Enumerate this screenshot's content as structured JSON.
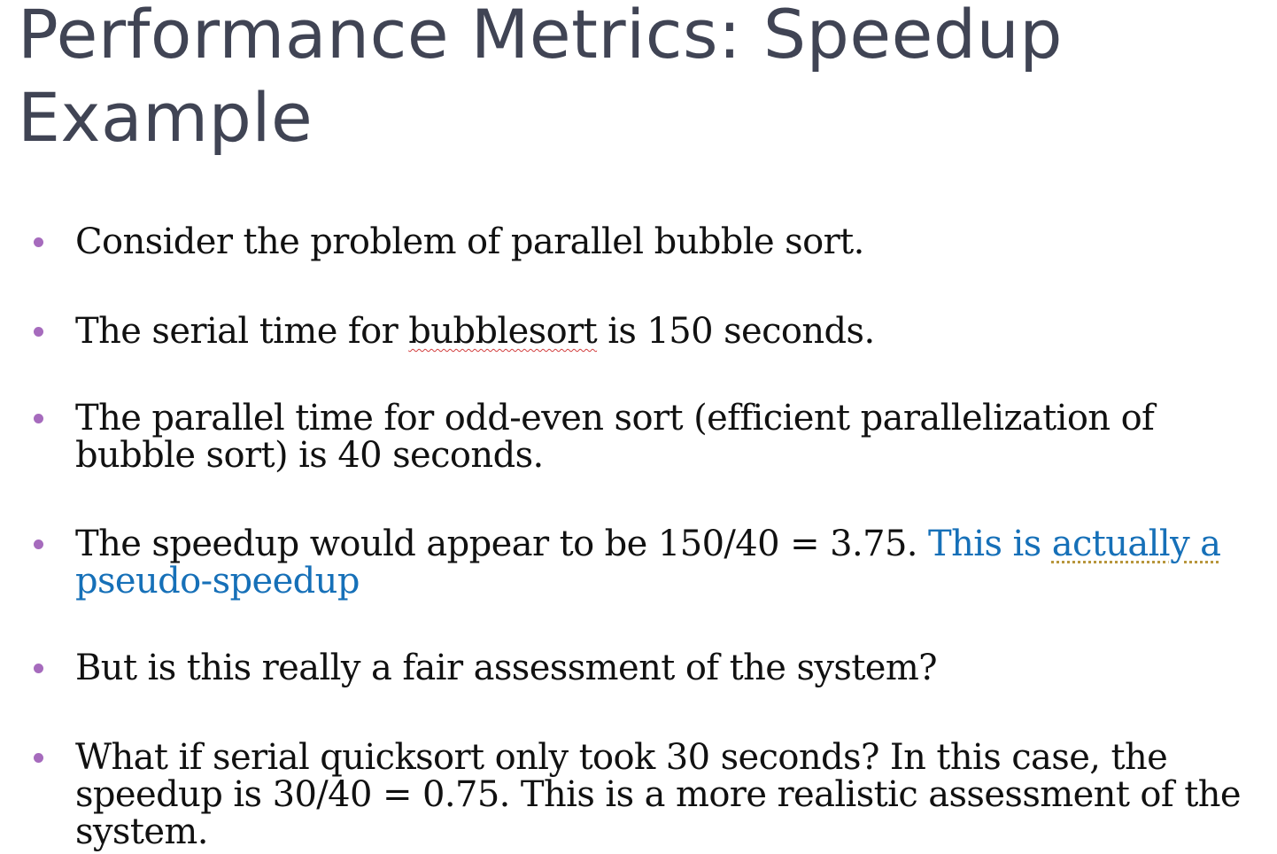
{
  "title": {
    "line1": "Performance Metrics: Speedup",
    "line2": "Example"
  },
  "bullets": [
    {
      "text": "Consider the problem of parallel bubble sort."
    },
    {
      "before": "The serial time for ",
      "flagged_word": "bubblesort",
      "after": " is 150 seconds."
    },
    {
      "line1": "The parallel time for odd-even sort (efficient parallelization of",
      "line2": "bubble sort) is 40 seconds."
    },
    {
      "text": "The speedup would appear to be 150/40 = 3.75. ",
      "accent_before": "This is ",
      "accent_flagged": "actually a",
      "accent_line2": "pseudo-speedup"
    },
    {
      "text": "But is this really a fair assessment of the system?"
    },
    {
      "line1": "What if serial quicksort only took 30 seconds? In this case, the",
      "line2": "speedup is 30/40 = 0.75. This is a more realistic assessment of the",
      "line3": "system."
    }
  ],
  "colors": {
    "title": "#404454",
    "body_text": "#111111",
    "bullet_dot": "#a66bbd",
    "accent_text": "#1670b8",
    "spellcheck_underline": "#d23c3c",
    "grammar_underline": "#b8963c"
  }
}
